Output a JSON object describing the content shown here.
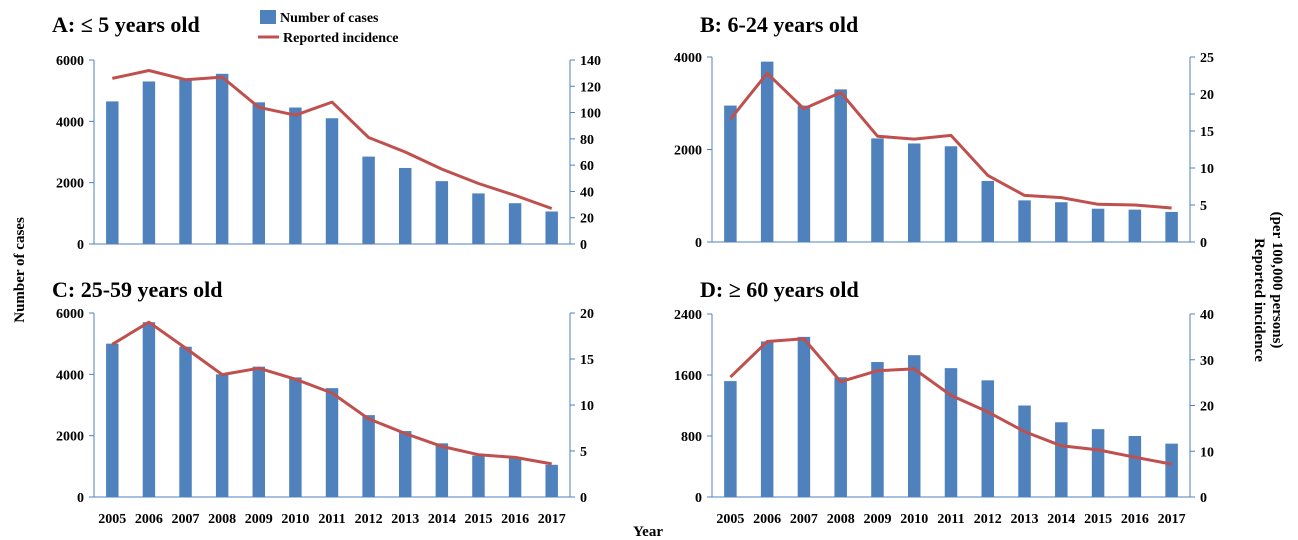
{
  "legend": {
    "cases_label": "Number of cases",
    "incidence_label": "Reported incidence"
  },
  "axis_labels": {
    "left": "Number of cases",
    "right_line1": "Reported incidence",
    "right_line2": "(per 100,000 persons)",
    "x": "Year"
  },
  "colors": {
    "bar": "#4f81bd",
    "line": "#c0504d",
    "axis": "#4f81bd"
  },
  "chart_data": [
    {
      "type": "bar",
      "title": "A: ≤ 5 years old",
      "categories": [
        "2005",
        "2006",
        "2007",
        "2008",
        "2009",
        "2010",
        "2011",
        "2012",
        "2013",
        "2014",
        "2015",
        "2016",
        "2017"
      ],
      "ylim": [
        0,
        6000
      ],
      "yticks": [
        "0",
        "2000",
        "4000",
        "6000"
      ],
      "y2lim": [
        0,
        140
      ],
      "y2ticks": [
        "0",
        "20",
        "40",
        "60",
        "80",
        "100",
        "120",
        "140"
      ],
      "series": [
        {
          "name": "Number of cases",
          "kind": "bar",
          "axis": "left",
          "values": [
            4650,
            5300,
            5350,
            5550,
            4620,
            4450,
            4100,
            2850,
            2480,
            2050,
            1650,
            1330,
            1060
          ]
        },
        {
          "name": "Reported incidence",
          "kind": "line",
          "axis": "right",
          "values": [
            126,
            132,
            125,
            127,
            104,
            98,
            108,
            81,
            70,
            57,
            46,
            37,
            27
          ]
        }
      ]
    },
    {
      "type": "bar",
      "title": "B: 6-24 years old",
      "categories": [
        "2005",
        "2006",
        "2007",
        "2008",
        "2009",
        "2010",
        "2011",
        "2012",
        "2013",
        "2014",
        "2015",
        "2016",
        "2017"
      ],
      "ylim": [
        0,
        4000
      ],
      "yticks": [
        "0",
        "2000",
        "4000"
      ],
      "y2lim": [
        0,
        25
      ],
      "y2ticks": [
        "0",
        "5",
        "10",
        "15",
        "20",
        "25"
      ],
      "series": [
        {
          "name": "Number of cases",
          "kind": "bar",
          "axis": "left",
          "values": [
            2950,
            3900,
            2950,
            3300,
            2240,
            2130,
            2070,
            1320,
            900,
            860,
            720,
            700,
            650
          ]
        },
        {
          "name": "Reported incidence",
          "kind": "line",
          "axis": "right",
          "values": [
            16.6,
            22.8,
            18.0,
            20.2,
            14.3,
            13.9,
            14.4,
            9.0,
            6.3,
            6.0,
            5.1,
            5.0,
            4.6
          ]
        }
      ]
    },
    {
      "type": "bar",
      "title": "C: 25-59 years old",
      "categories": [
        "2005",
        "2006",
        "2007",
        "2008",
        "2009",
        "2010",
        "2011",
        "2012",
        "2013",
        "2014",
        "2015",
        "2016",
        "2017"
      ],
      "ylim": [
        0,
        6000
      ],
      "yticks": [
        "0",
        "2000",
        "4000",
        "6000"
      ],
      "y2lim": [
        0,
        20
      ],
      "y2ticks": [
        "0",
        "5",
        "10",
        "15",
        "20"
      ],
      "series": [
        {
          "name": "Number of cases",
          "kind": "bar",
          "axis": "left",
          "values": [
            5000,
            5700,
            4900,
            4000,
            4250,
            3900,
            3550,
            2670,
            2150,
            1750,
            1350,
            1300,
            1050
          ]
        },
        {
          "name": "Reported incidence",
          "kind": "line",
          "axis": "right",
          "values": [
            16.6,
            19.0,
            16.2,
            13.3,
            14.0,
            12.8,
            11.3,
            8.5,
            6.9,
            5.5,
            4.6,
            4.3,
            3.6
          ]
        }
      ]
    },
    {
      "type": "bar",
      "title": "D: ≥ 60 years old",
      "categories": [
        "2005",
        "2006",
        "2007",
        "2008",
        "2009",
        "2010",
        "2011",
        "2012",
        "2013",
        "2014",
        "2015",
        "2016",
        "2017"
      ],
      "ylim": [
        0,
        2400
      ],
      "yticks": [
        "0",
        "800",
        "1600",
        "2400"
      ],
      "y2lim": [
        0,
        40
      ],
      "y2ticks": [
        "0",
        "10",
        "20",
        "30",
        "40"
      ],
      "series": [
        {
          "name": "Number of cases",
          "kind": "bar",
          "axis": "left",
          "values": [
            1520,
            2040,
            2100,
            1570,
            1770,
            1860,
            1690,
            1530,
            1200,
            980,
            890,
            800,
            700
          ]
        },
        {
          "name": "Reported incidence",
          "kind": "line",
          "axis": "right",
          "values": [
            26.2,
            34.0,
            34.6,
            25.2,
            27.6,
            28.0,
            22.2,
            18.6,
            14.3,
            11.2,
            10.3,
            8.7,
            7.2
          ]
        }
      ]
    }
  ]
}
